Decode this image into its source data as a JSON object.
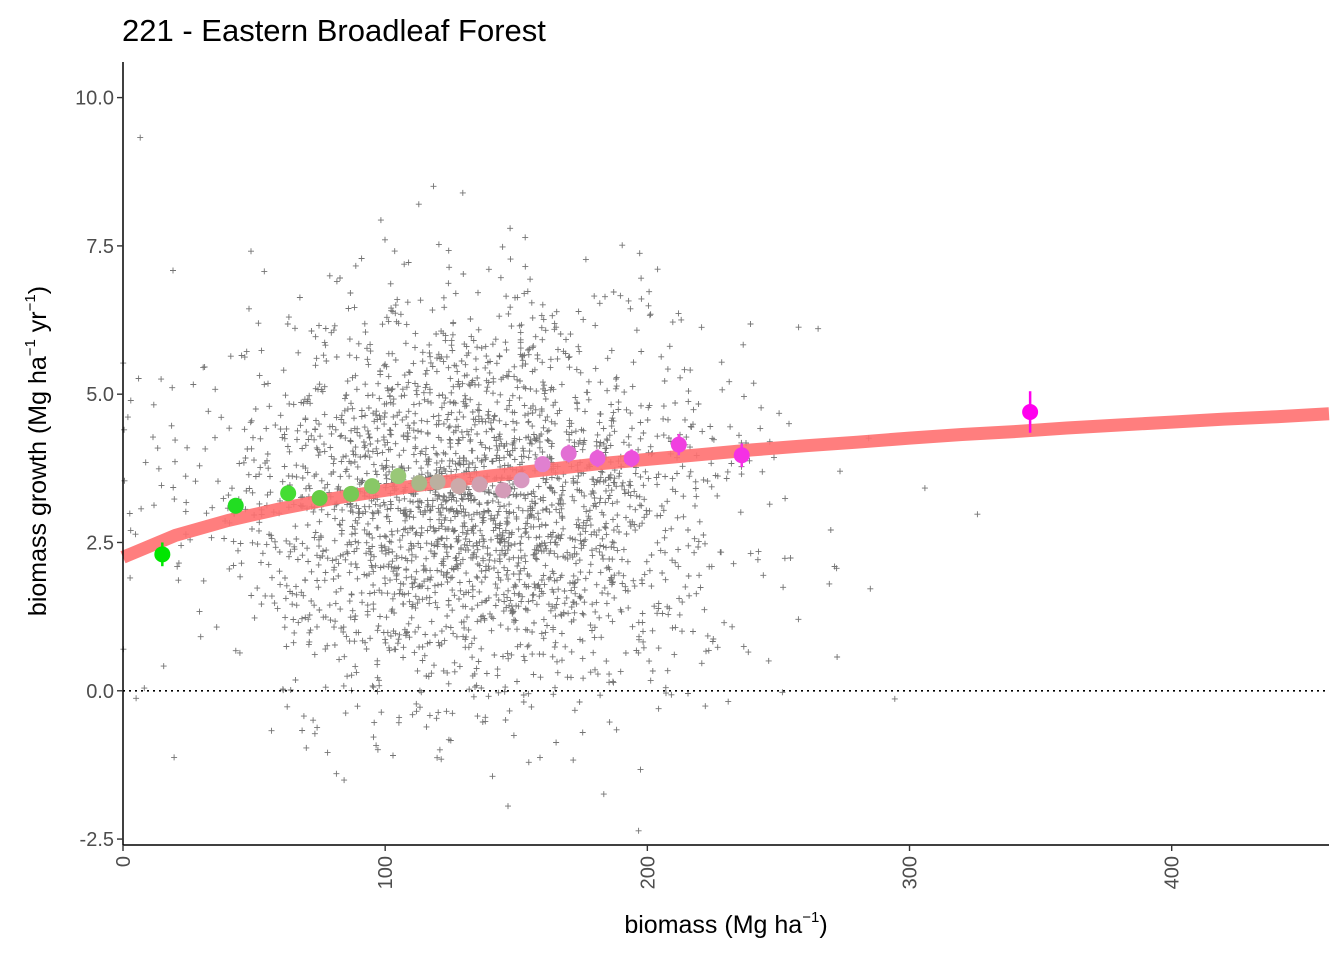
{
  "chart_data": {
    "type": "scatter",
    "title": "221 - Eastern Broadleaf Forest",
    "xlabel": {
      "text": "biomass (Mg ha",
      "sup": "−1",
      "close": ")"
    },
    "ylabel": {
      "text_a": "biomass growth (Mg ha",
      "sup_a": "−1",
      "text_b": " yr",
      "sup_b": "−1",
      "close": ")"
    },
    "xlim": [
      0,
      460
    ],
    "ylim": [
      -2.6,
      10.6
    ],
    "x_ticks": [
      0,
      100,
      200,
      300,
      400
    ],
    "x_tick_labels": [
      "0",
      "100",
      "200",
      "300",
      "400"
    ],
    "y_ticks": [
      -2.5,
      0,
      2.5,
      5,
      7.5,
      10
    ],
    "y_tick_labels": [
      "-2.5",
      "0.0",
      "2.5",
      "5.0",
      "7.5",
      "10.0"
    ],
    "reference_line": {
      "y": 0,
      "style": "dotted",
      "color": "#000000"
    },
    "scatter": {
      "marker": "plus",
      "color": "#000000",
      "approx_count": 6000,
      "x_center": 135,
      "x_spread": 60,
      "x_max": 440,
      "y_center": 3.2,
      "y_spread": 2.2
    },
    "fit_curve": {
      "color": "#ff7070",
      "x": [
        0,
        20,
        40,
        60,
        80,
        100,
        120,
        140,
        160,
        180,
        200,
        220,
        240,
        260,
        280,
        300,
        320,
        340,
        360,
        380,
        400,
        420,
        440,
        460
      ],
      "y": [
        2.25,
        2.62,
        2.87,
        3.07,
        3.24,
        3.38,
        3.51,
        3.62,
        3.72,
        3.82,
        3.9,
        3.98,
        4.06,
        4.13,
        4.19,
        4.26,
        4.32,
        4.37,
        4.43,
        4.48,
        4.53,
        4.58,
        4.62,
        4.67
      ]
    },
    "binned_means": [
      {
        "x": 15,
        "y": 2.3,
        "err": 0.2,
        "color": "#00e600"
      },
      {
        "x": 43,
        "y": 3.12,
        "err": 0.12,
        "color": "#22dd22"
      },
      {
        "x": 63,
        "y": 3.33,
        "err": 0.1,
        "color": "#44dd33"
      },
      {
        "x": 75,
        "y": 3.25,
        "err": 0.1,
        "color": "#66cc44"
      },
      {
        "x": 87,
        "y": 3.32,
        "err": 0.1,
        "color": "#77c955"
      },
      {
        "x": 95,
        "y": 3.45,
        "err": 0.1,
        "color": "#88c866"
      },
      {
        "x": 105,
        "y": 3.62,
        "err": 0.1,
        "color": "#99c877"
      },
      {
        "x": 113,
        "y": 3.5,
        "err": 0.1,
        "color": "#a8b888"
      },
      {
        "x": 120,
        "y": 3.52,
        "err": 0.1,
        "color": "#bbb0a0"
      },
      {
        "x": 128,
        "y": 3.45,
        "err": 0.1,
        "color": "#ccaaaa"
      },
      {
        "x": 136,
        "y": 3.48,
        "err": 0.1,
        "color": "#d0a0b0"
      },
      {
        "x": 145,
        "y": 3.38,
        "err": 0.1,
        "color": "#d49cb8"
      },
      {
        "x": 152,
        "y": 3.55,
        "err": 0.1,
        "color": "#d898c0"
      },
      {
        "x": 160,
        "y": 3.82,
        "err": 0.12,
        "color": "#e080d0"
      },
      {
        "x": 170,
        "y": 4.0,
        "err": 0.15,
        "color": "#e270d4"
      },
      {
        "x": 181,
        "y": 3.92,
        "err": 0.15,
        "color": "#e860d8"
      },
      {
        "x": 194,
        "y": 3.92,
        "err": 0.15,
        "color": "#ec50dc"
      },
      {
        "x": 212,
        "y": 4.15,
        "err": 0.18,
        "color": "#f040e0"
      },
      {
        "x": 236,
        "y": 3.97,
        "err": 0.2,
        "color": "#f530e5"
      },
      {
        "x": 346,
        "y": 4.7,
        "err": 0.35,
        "color": "#ff00ee"
      }
    ]
  }
}
